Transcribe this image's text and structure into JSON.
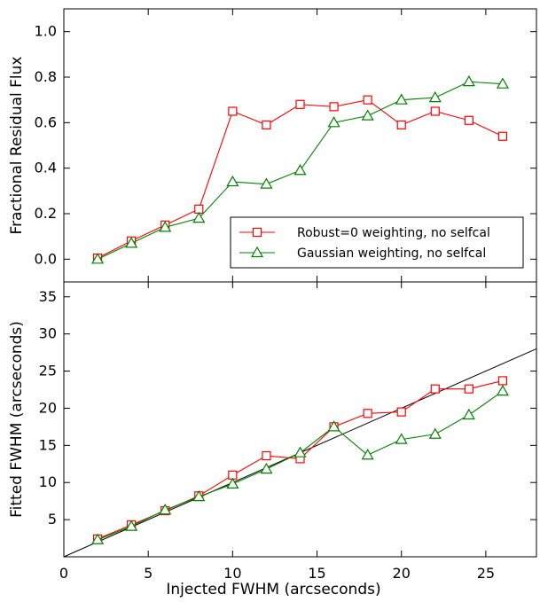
{
  "chart_data": [
    {
      "type": "line",
      "panel": "top",
      "title": "",
      "xlabel": "",
      "ylabel": "Fractional Residual Flux",
      "xlim": [
        0,
        28
      ],
      "ylim": [
        -0.1,
        1.1
      ],
      "yticks": [
        0.0,
        0.2,
        0.4,
        0.6,
        0.8,
        1.0
      ],
      "ytick_labels": [
        "0.0",
        "0.2",
        "0.4",
        "0.6",
        "0.8",
        "1.0"
      ],
      "grid": false,
      "legend_position": "lower-right",
      "series": [
        {
          "name": "Robust=0 weighting, no selfcal",
          "color": "#ff0000",
          "marker": "square",
          "x": [
            2,
            4,
            6,
            8,
            10,
            12,
            14,
            16,
            18,
            20,
            22,
            24,
            26
          ],
          "y": [
            0.005,
            0.08,
            0.15,
            0.22,
            0.65,
            0.59,
            0.68,
            0.67,
            0.7,
            0.59,
            0.65,
            0.61,
            0.54
          ]
        },
        {
          "name": "Gaussian weighting, no selfcal",
          "color": "#008000",
          "marker": "triangle",
          "x": [
            2,
            4,
            6,
            8,
            10,
            12,
            14,
            16,
            18,
            20,
            22,
            24,
            26
          ],
          "y": [
            0.0,
            0.07,
            0.14,
            0.18,
            0.34,
            0.33,
            0.39,
            0.6,
            0.63,
            0.7,
            0.71,
            0.78,
            0.77
          ]
        }
      ]
    },
    {
      "type": "line",
      "panel": "bottom",
      "title": "",
      "xlabel": "Injected FWHM (arcseconds)",
      "ylabel": "Fitted FWHM (arcseconds)",
      "xlim": [
        0,
        28
      ],
      "ylim": [
        0,
        37
      ],
      "xticks": [
        0,
        5,
        10,
        15,
        20,
        25
      ],
      "xtick_labels": [
        "0",
        "5",
        "10",
        "15",
        "20",
        "25"
      ],
      "yticks": [
        5,
        10,
        15,
        20,
        25,
        30,
        35
      ],
      "ytick_labels": [
        "5",
        "10",
        "15",
        "20",
        "25",
        "30",
        "35"
      ],
      "grid": false,
      "reference_line": {
        "description": "y = x",
        "color": "#000000"
      },
      "series": [
        {
          "color": "#ff0000",
          "marker": "square",
          "x": [
            2,
            4,
            6,
            8,
            10,
            12,
            14,
            16,
            18,
            20,
            22,
            24,
            26
          ],
          "y": [
            2.4,
            4.3,
            6.2,
            8.2,
            11.0,
            13.6,
            13.2,
            17.5,
            19.3,
            19.5,
            22.6,
            22.6,
            23.7
          ]
        },
        {
          "color": "#008000",
          "marker": "triangle",
          "x": [
            2,
            4,
            6,
            8,
            10,
            12,
            14,
            16,
            18,
            20,
            22,
            24,
            26
          ],
          "y": [
            2.3,
            4.1,
            6.3,
            8.1,
            9.8,
            11.8,
            14.0,
            17.5,
            13.7,
            15.8,
            16.5,
            19.1,
            22.3
          ]
        }
      ]
    }
  ]
}
